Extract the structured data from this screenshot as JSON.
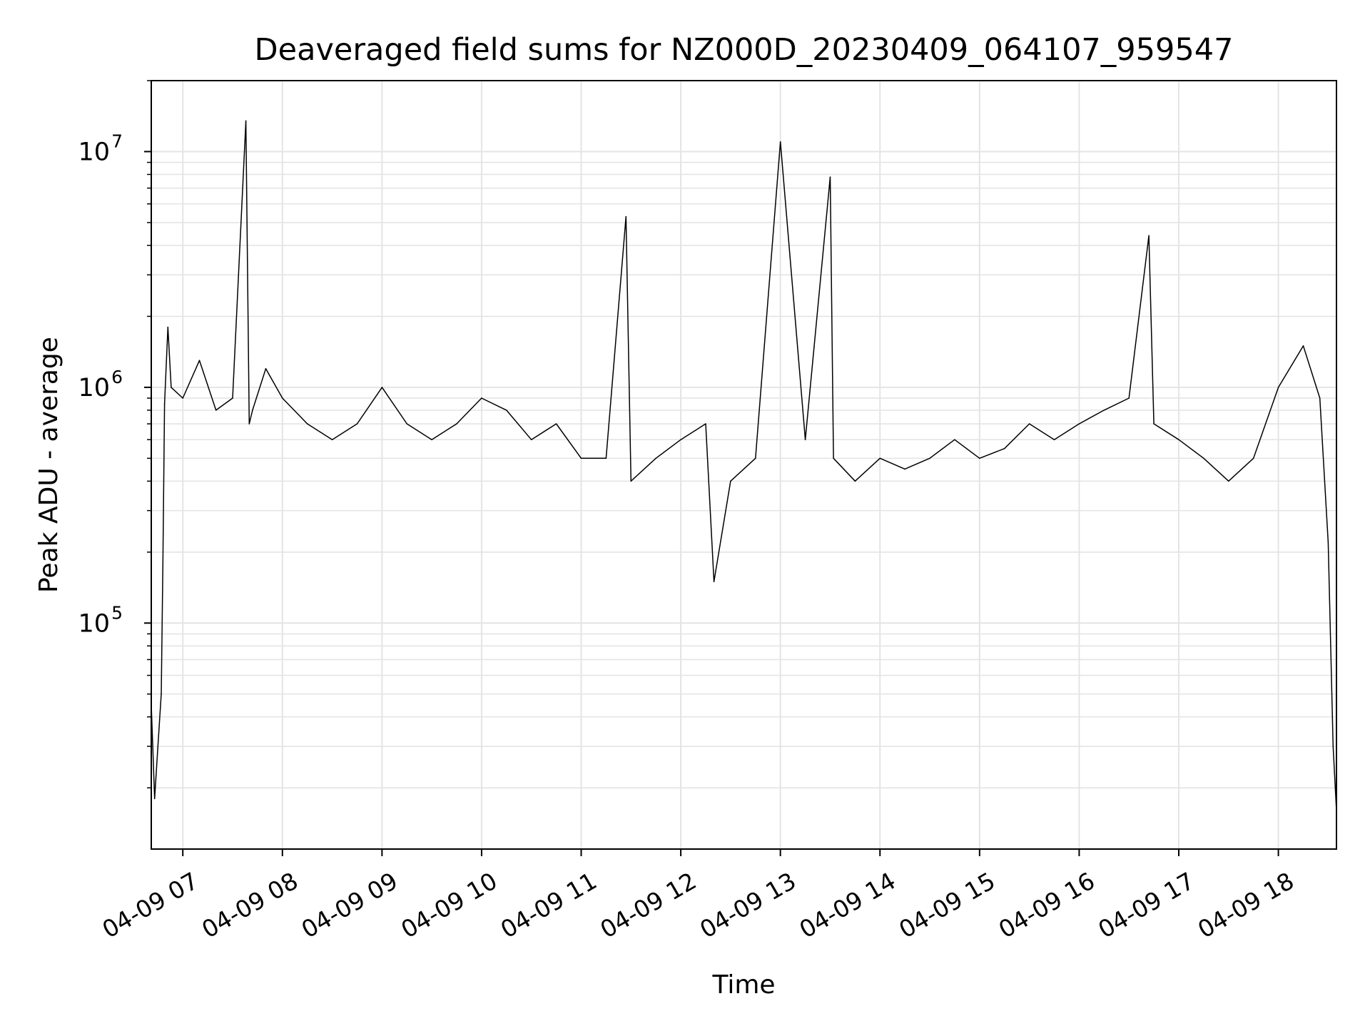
{
  "chart_data": {
    "type": "line",
    "title": "Deaveraged field sums for NZ000D_20230409_064107_959547",
    "xlabel": "Time",
    "ylabel": "Peak ADU - average",
    "yscale": "log",
    "ylim": [
      11000,
      20000000
    ],
    "xlim": [
      "2023-04-09 06:41",
      "2023-04-09 18:35"
    ],
    "grid": true,
    "grid_minor": true,
    "line_color": "#000000",
    "x_ticks": [
      {
        "label": "04-09 07",
        "value": "2023-04-09 07:00"
      },
      {
        "label": "04-09 08",
        "value": "2023-04-09 08:00"
      },
      {
        "label": "04-09 09",
        "value": "2023-04-09 09:00"
      },
      {
        "label": "04-09 10",
        "value": "2023-04-09 10:00"
      },
      {
        "label": "04-09 11",
        "value": "2023-04-09 11:00"
      },
      {
        "label": "04-09 12",
        "value": "2023-04-09 12:00"
      },
      {
        "label": "04-09 13",
        "value": "2023-04-09 13:00"
      },
      {
        "label": "04-09 14",
        "value": "2023-04-09 14:00"
      },
      {
        "label": "04-09 15",
        "value": "2023-04-09 15:00"
      },
      {
        "label": "04-09 16",
        "value": "2023-04-09 16:00"
      },
      {
        "label": "04-09 17",
        "value": "2023-04-09 17:00"
      },
      {
        "label": "04-09 18",
        "value": "2023-04-09 18:00"
      }
    ],
    "y_ticks": [
      {
        "base": "10",
        "exp": "5",
        "value": 100000
      },
      {
        "base": "10",
        "exp": "6",
        "value": 1000000
      },
      {
        "base": "10",
        "exp": "7",
        "value": 10000000
      }
    ],
    "series": [
      {
        "x": [
          "2023-04-09 06:41",
          "2023-04-09 06:43",
          "2023-04-09 06:45",
          "2023-04-09 06:47",
          "2023-04-09 06:48",
          "2023-04-09 06:49",
          "2023-04-09 06:51",
          "2023-04-09 06:53",
          "2023-04-09 07:00",
          "2023-04-09 07:10",
          "2023-04-09 07:20",
          "2023-04-09 07:30",
          "2023-04-09 07:38",
          "2023-04-09 07:40",
          "2023-04-09 07:42",
          "2023-04-09 07:50",
          "2023-04-09 08:00",
          "2023-04-09 08:15",
          "2023-04-09 08:30",
          "2023-04-09 08:45",
          "2023-04-09 09:00",
          "2023-04-09 09:15",
          "2023-04-09 09:30",
          "2023-04-09 09:45",
          "2023-04-09 10:00",
          "2023-04-09 10:15",
          "2023-04-09 10:30",
          "2023-04-09 10:45",
          "2023-04-09 11:00",
          "2023-04-09 11:15",
          "2023-04-09 11:27",
          "2023-04-09 11:30",
          "2023-04-09 11:45",
          "2023-04-09 12:00",
          "2023-04-09 12:15",
          "2023-04-09 12:20",
          "2023-04-09 12:30",
          "2023-04-09 12:45",
          "2023-04-09 13:00",
          "2023-04-09 13:15",
          "2023-04-09 13:30",
          "2023-04-09 13:32",
          "2023-04-09 13:45",
          "2023-04-09 14:00",
          "2023-04-09 14:15",
          "2023-04-09 14:30",
          "2023-04-09 14:45",
          "2023-04-09 15:00",
          "2023-04-09 15:15",
          "2023-04-09 15:30",
          "2023-04-09 15:45",
          "2023-04-09 16:00",
          "2023-04-09 16:15",
          "2023-04-09 16:30",
          "2023-04-09 16:42",
          "2023-04-09 16:45",
          "2023-04-09 17:00",
          "2023-04-09 17:15",
          "2023-04-09 17:30",
          "2023-04-09 17:45",
          "2023-04-09 18:00",
          "2023-04-09 18:15",
          "2023-04-09 18:25",
          "2023-04-09 18:30",
          "2023-04-09 18:33",
          "2023-04-09 18:35"
        ],
        "y": [
          45000,
          18000,
          30000,
          50000,
          180000,
          850000,
          1800000,
          1000000,
          900000,
          1300000,
          800000,
          900000,
          13500000,
          700000,
          800000,
          1200000,
          900000,
          700000,
          600000,
          700000,
          1000000,
          700000,
          600000,
          700000,
          900000,
          800000,
          600000,
          700000,
          500000,
          500000,
          5300000,
          400000,
          500000,
          600000,
          700000,
          150000,
          400000,
          500000,
          11000000,
          600000,
          7800000,
          500000,
          400000,
          500000,
          450000,
          500000,
          600000,
          500000,
          550000,
          700000,
          600000,
          700000,
          800000,
          900000,
          4400000,
          700000,
          600000,
          500000,
          400000,
          500000,
          1000000,
          1500000,
          900000,
          220000,
          30000,
          16000
        ]
      }
    ]
  }
}
